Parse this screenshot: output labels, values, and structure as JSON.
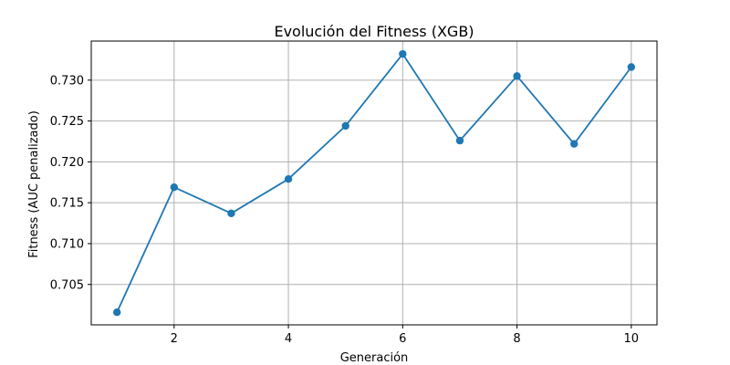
{
  "chart_data": {
    "type": "line",
    "title": "Evolución del Fitness (XGB)",
    "xlabel": "Generación",
    "ylabel": "Fitness (AUC penalizado)",
    "x": [
      1,
      2,
      3,
      4,
      5,
      6,
      7,
      8,
      9,
      10
    ],
    "series": [
      {
        "values": [
          0.7016,
          0.7169,
          0.7137,
          0.7179,
          0.7244,
          0.7332,
          0.7226,
          0.7305,
          0.7222,
          0.7316
        ],
        "color": "#1f77b4",
        "marker": "circle"
      }
    ],
    "xticks": [
      2,
      4,
      6,
      8,
      10
    ],
    "xtick_labels": [
      "2",
      "4",
      "6",
      "8",
      "10"
    ],
    "yticks": [
      0.705,
      0.71,
      0.715,
      0.72,
      0.725,
      0.73
    ],
    "ytick_labels": [
      "0.705",
      "0.710",
      "0.715",
      "0.720",
      "0.725",
      "0.730"
    ],
    "xlim": [
      0.55,
      10.45
    ],
    "ylim": [
      0.70006,
      0.73478
    ],
    "grid": true,
    "grid_color": "#b0b0b0"
  }
}
